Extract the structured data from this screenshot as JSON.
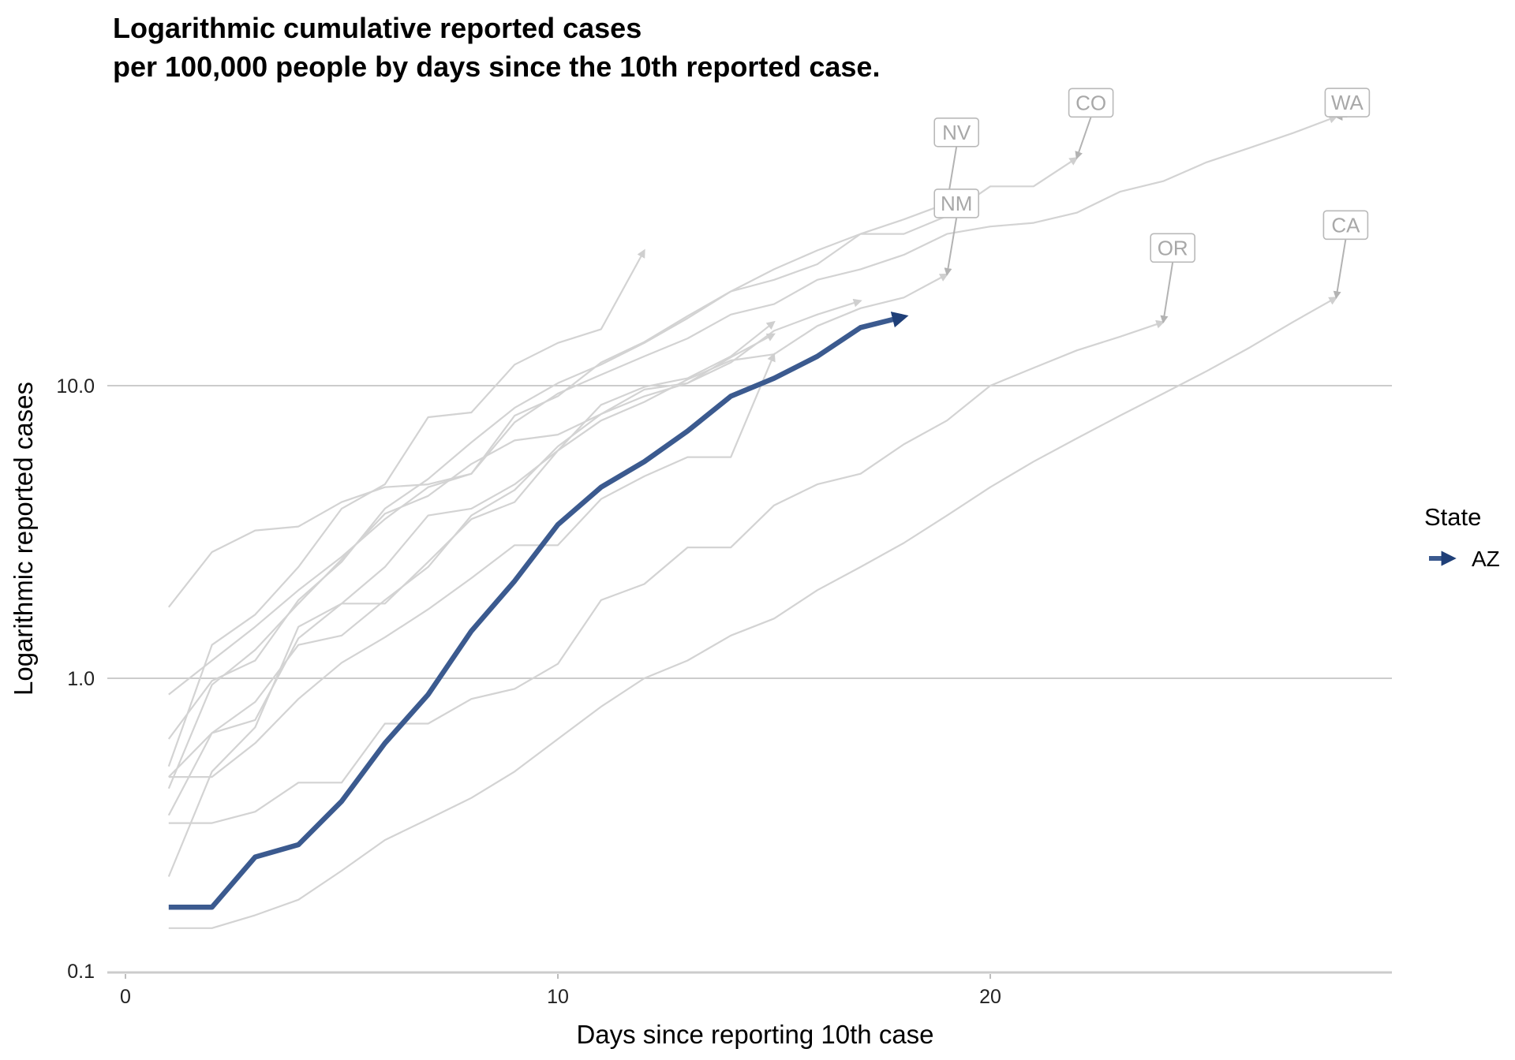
{
  "chart_data": {
    "type": "line",
    "title": [
      "Logarithmic cumulative reported cases",
      "per 100,000 people by days since the 10th reported case."
    ],
    "xlabel": "Days since reporting 10th case",
    "ylabel": "Logarithmic reported cases",
    "xlim": [
      -0.5,
      29
    ],
    "ylim": [
      0.1,
      100
    ],
    "y_scale": "log",
    "x_ticks": [
      {
        "value": 0,
        "label": "0"
      },
      {
        "value": 10,
        "label": "10"
      },
      {
        "value": 20,
        "label": "20"
      }
    ],
    "y_ticks": [
      {
        "value": 0.1,
        "label": "0.1"
      },
      {
        "value": 1,
        "label": "1.0"
      },
      {
        "value": 10,
        "label": "10.0"
      }
    ],
    "grid": "horizontal major",
    "legend": {
      "title": "State",
      "position": "right",
      "items": [
        {
          "label": "AZ",
          "color": "#3b5a8f"
        }
      ]
    },
    "highlight_series": {
      "name": "AZ",
      "color": "#3b5a8f",
      "x": [
        1,
        2,
        3,
        4,
        5,
        6,
        7,
        8,
        9,
        10,
        11,
        12,
        13,
        14,
        15,
        16,
        17,
        18
      ],
      "y": [
        0.165,
        0.165,
        0.245,
        0.27,
        0.38,
        0.6,
        0.88,
        1.45,
        2.15,
        3.35,
        4.5,
        5.5,
        7.0,
        9.2,
        10.6,
        12.6,
        15.8,
        17.2
      ]
    },
    "background_series": [
      {
        "name": "NV",
        "x": [
          1,
          2,
          3,
          4,
          5,
          6,
          7,
          8,
          9,
          10,
          11,
          12,
          13,
          14,
          15,
          16,
          17,
          18,
          19
        ],
        "y": [
          0.88,
          1.15,
          1.5,
          2.0,
          2.6,
          3.5,
          4.5,
          5.0,
          7.9,
          9.2,
          12.0,
          14.1,
          17.3,
          21.0,
          25.0,
          29.0,
          33.0,
          37.0,
          42.0
        ]
      },
      {
        "name": "CO",
        "x": [
          1,
          2,
          3,
          4,
          5,
          6,
          7,
          8,
          9,
          10,
          11,
          12,
          13,
          14,
          15,
          16,
          17,
          18,
          19,
          20,
          21,
          22
        ],
        "y": [
          0.62,
          0.98,
          1.15,
          1.85,
          2.5,
          3.8,
          4.8,
          6.4,
          8.4,
          10.2,
          11.8,
          14.0,
          17.0,
          21.0,
          23.0,
          26.0,
          33.0,
          33.0,
          38.0,
          48.0,
          48.0,
          60.0
        ]
      },
      {
        "name": "WA",
        "x": [
          1,
          2,
          3,
          4,
          5,
          6,
          7,
          8,
          9,
          10,
          11,
          12,
          13,
          14,
          15,
          16,
          17,
          18,
          19,
          20,
          21,
          22,
          23,
          24,
          25,
          26,
          27,
          28
        ],
        "y": [
          1.75,
          2.7,
          3.2,
          3.3,
          4.0,
          4.5,
          4.6,
          5.0,
          7.5,
          9.4,
          10.9,
          12.6,
          14.5,
          17.5,
          19.0,
          23.0,
          25.0,
          28.0,
          33.0,
          35.0,
          36.0,
          39.0,
          46.0,
          50.0,
          58.0,
          65.0,
          73.0,
          83.0
        ]
      },
      {
        "name": "CA",
        "x": [
          1,
          2,
          3,
          4,
          5,
          6,
          7,
          8,
          9,
          10,
          11,
          12,
          13,
          14,
          15,
          16,
          17,
          18,
          19,
          20,
          21,
          22,
          23,
          24,
          25,
          26,
          27,
          28
        ],
        "y": [
          0.14,
          0.14,
          0.155,
          0.175,
          0.22,
          0.28,
          0.33,
          0.39,
          0.48,
          0.62,
          0.8,
          1.0,
          1.15,
          1.4,
          1.6,
          2.0,
          2.4,
          2.9,
          3.6,
          4.5,
          5.5,
          6.6,
          7.9,
          9.4,
          11.2,
          13.5,
          16.5,
          20.0
        ]
      },
      {
        "name": "NM",
        "x": [
          1,
          2,
          3,
          4,
          5,
          6,
          7,
          8,
          9,
          10,
          11,
          12,
          13,
          14,
          15,
          16,
          17,
          18,
          19
        ],
        "y": [
          0.21,
          0.48,
          0.68,
          1.5,
          1.8,
          1.8,
          2.5,
          3.5,
          4.0,
          6.0,
          7.6,
          8.8,
          10.5,
          12.2,
          12.8,
          16.0,
          18.4,
          20.0,
          24.0
        ]
      },
      {
        "name": "OR",
        "x": [
          1,
          2,
          3,
          4,
          5,
          6,
          7,
          8,
          9,
          10,
          11,
          12,
          13,
          14,
          15,
          16,
          17,
          18,
          19,
          20,
          21,
          22,
          23,
          24
        ],
        "y": [
          0.32,
          0.32,
          0.35,
          0.44,
          0.44,
          0.7,
          0.7,
          0.85,
          0.92,
          1.12,
          1.85,
          2.1,
          2.8,
          2.8,
          3.9,
          4.6,
          5.0,
          6.3,
          7.6,
          10.0,
          11.5,
          13.2,
          14.7,
          16.5
        ]
      },
      {
        "name": "",
        "x": [
          1,
          2,
          3,
          4,
          5,
          6,
          7,
          8,
          9,
          10,
          11,
          12
        ],
        "y": [
          0.5,
          1.3,
          1.65,
          2.4,
          3.8,
          4.6,
          7.8,
          8.1,
          11.8,
          14.0,
          15.6,
          29.0
        ]
      },
      {
        "name": "",
        "x": [
          1,
          2,
          3,
          4,
          5,
          6,
          7,
          8,
          9,
          10,
          11,
          12,
          13,
          14,
          15,
          16,
          17
        ],
        "y": [
          0.46,
          0.65,
          0.83,
          1.3,
          1.4,
          1.85,
          2.4,
          3.6,
          4.4,
          6.2,
          8.0,
          9.7,
          10.2,
          12.0,
          15.4,
          17.5,
          19.5
        ]
      },
      {
        "name": "",
        "x": [
          1,
          2,
          3,
          4,
          5,
          6,
          7,
          8,
          9,
          10,
          11,
          12,
          13,
          14,
          15
        ],
        "y": [
          0.46,
          0.46,
          0.6,
          0.85,
          1.13,
          1.38,
          1.72,
          2.2,
          2.85,
          2.85,
          4.1,
          4.9,
          5.7,
          5.7,
          12.8
        ]
      },
      {
        "name": "",
        "x": [
          1,
          2,
          3,
          4,
          5,
          6,
          7,
          8,
          9,
          10,
          11,
          12,
          13,
          14,
          15
        ],
        "y": [
          0.34,
          0.65,
          0.72,
          1.37,
          1.8,
          2.4,
          3.6,
          3.8,
          4.6,
          6.0,
          8.6,
          9.9,
          10.6,
          12.6,
          16.5
        ]
      },
      {
        "name": "",
        "x": [
          1,
          2,
          3,
          4,
          5,
          6,
          7,
          8,
          9,
          10,
          11,
          12,
          13,
          14,
          15
        ],
        "y": [
          0.42,
          0.95,
          1.25,
          1.8,
          2.55,
          3.65,
          4.2,
          5.4,
          6.5,
          6.8,
          8.0,
          9.2,
          10.2,
          12.5,
          15.0
        ]
      }
    ],
    "annotations": [
      "NV",
      "CO",
      "WA",
      "CA",
      "NM",
      "OR"
    ]
  }
}
